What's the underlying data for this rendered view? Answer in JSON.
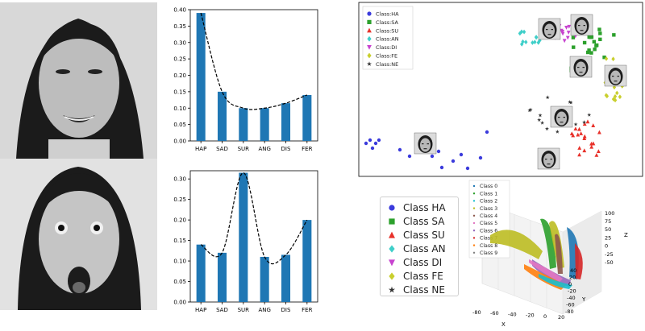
{
  "chart_data": [
    {
      "type": "bar",
      "categories": [
        "HAP",
        "SAD",
        "SUR",
        "ANG",
        "DIS",
        "FER"
      ],
      "values": [
        0.39,
        0.15,
        0.1,
        0.1,
        0.115,
        0.14
      ],
      "ylim": [
        0,
        0.4
      ],
      "yticks": [
        "0.00",
        "0.05",
        "0.10",
        "0.15",
        "0.20",
        "0.25",
        "0.30",
        "0.35",
        "0.40"
      ],
      "trend_line": "dashed",
      "bar_color": "#1f77b4"
    },
    {
      "type": "bar",
      "categories": [
        "HAP",
        "SAD",
        "SUR",
        "ANG",
        "DIS",
        "FER"
      ],
      "values": [
        0.14,
        0.12,
        0.315,
        0.11,
        0.115,
        0.2
      ],
      "ylim": [
        0,
        0.32
      ],
      "yticks": [
        "0.00",
        "0.05",
        "0.10",
        "0.15",
        "0.20",
        "0.25",
        "0.30"
      ],
      "trend_line": "dashed",
      "bar_color": "#1f77b4"
    },
    {
      "type": "scatter",
      "legend_position": "top-left",
      "series": [
        {
          "name": "Class:HA",
          "marker": "circle",
          "color": "#3b3bdc"
        },
        {
          "name": "Class:SA",
          "marker": "square",
          "color": "#2ca02c"
        },
        {
          "name": "Class:SU",
          "marker": "triangle",
          "color": "#e8312a"
        },
        {
          "name": "Class:AN",
          "marker": "diamond",
          "color": "#3fcfc9"
        },
        {
          "name": "Class:DI",
          "marker": "triangle-down",
          "color": "#c743cf"
        },
        {
          "name": "Class:FE",
          "marker": "diamond",
          "color": "#c9cf2e"
        },
        {
          "name": "Class:NE",
          "marker": "star",
          "color": "#333333"
        }
      ]
    },
    {
      "type": "scatter",
      "axes": {
        "x": "X",
        "y": "Y",
        "z": "Z"
      },
      "xticks": [
        "-80",
        "-60",
        "-40",
        "-20",
        "0",
        "20"
      ],
      "yticks": [
        "-80",
        "-60",
        "-40",
        "-20",
        "0",
        "20",
        "40"
      ],
      "zticks": [
        "-50",
        "-25",
        "0",
        "25",
        "50",
        "75",
        "100"
      ],
      "series": [
        {
          "name": "Class 0",
          "color": "#1f77b4"
        },
        {
          "name": "Class 1",
          "color": "#2ca02c"
        },
        {
          "name": "Class 2",
          "color": "#17becf"
        },
        {
          "name": "Class 3",
          "color": "#bcbd22"
        },
        {
          "name": "Class 4",
          "color": "#8c564b"
        },
        {
          "name": "Class 5",
          "color": "#e377c2"
        },
        {
          "name": "Class 6",
          "color": "#9467bd"
        },
        {
          "name": "Class 7",
          "color": "#d62728"
        },
        {
          "name": "Class 8",
          "color": "#ff7f0e"
        },
        {
          "name": "Class 9",
          "color": "#7f7f7f"
        }
      ]
    }
  ],
  "legend_large": {
    "items": [
      {
        "label": "Class HA",
        "marker": "circle",
        "color": "#3b3bdc"
      },
      {
        "label": "Class SA",
        "marker": "square",
        "color": "#2ca02c"
      },
      {
        "label": "Class SU",
        "marker": "triangle",
        "color": "#e8312a"
      },
      {
        "label": "Class AN",
        "marker": "diamond",
        "color": "#3fcfc9"
      },
      {
        "label": "Class DI",
        "marker": "triangle-down",
        "color": "#c743cf"
      },
      {
        "label": "Class FE",
        "marker": "diamond",
        "color": "#c9cf2e"
      },
      {
        "label": "Class NE",
        "marker": "star",
        "color": "#333333"
      }
    ]
  }
}
